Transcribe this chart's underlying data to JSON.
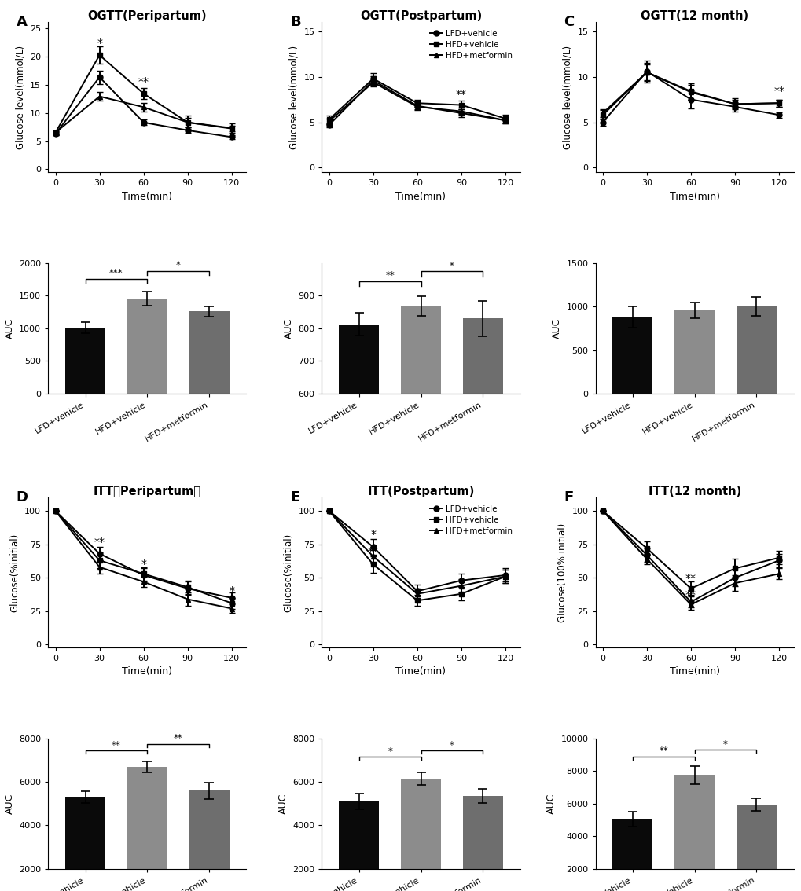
{
  "time_points": [
    0,
    30,
    60,
    90,
    120
  ],
  "ogtt_peri_lfd": [
    6.3,
    16.3,
    8.3,
    6.9,
    5.7
  ],
  "ogtt_peri_hfd": [
    6.5,
    20.2,
    13.4,
    8.3,
    7.3
  ],
  "ogtt_peri_met": [
    6.5,
    12.9,
    11.0,
    8.3,
    7.2
  ],
  "ogtt_peri_lfd_err": [
    0.3,
    1.2,
    0.5,
    0.5,
    0.4
  ],
  "ogtt_peri_hfd_err": [
    0.4,
    1.5,
    1.0,
    1.2,
    0.8
  ],
  "ogtt_peri_met_err": [
    0.3,
    0.8,
    0.8,
    0.8,
    0.5
  ],
  "ogtt_post_lfd": [
    4.7,
    9.6,
    6.8,
    6.0,
    5.2
  ],
  "ogtt_post_hfd": [
    5.3,
    9.8,
    7.1,
    6.9,
    5.4
  ],
  "ogtt_post_met": [
    5.1,
    9.4,
    6.7,
    6.2,
    5.2
  ],
  "ogtt_post_lfd_err": [
    0.3,
    0.5,
    0.4,
    0.4,
    0.3
  ],
  "ogtt_post_hfd_err": [
    0.4,
    0.6,
    0.4,
    0.5,
    0.4
  ],
  "ogtt_post_met_err": [
    0.3,
    0.5,
    0.4,
    0.4,
    0.3
  ],
  "ogtt_12m_lfd": [
    5.0,
    10.6,
    7.5,
    6.7,
    5.8
  ],
  "ogtt_12m_hfd": [
    5.8,
    10.5,
    8.4,
    7.0,
    7.1
  ],
  "ogtt_12m_met": [
    6.0,
    10.5,
    8.3,
    7.0,
    7.1
  ],
  "ogtt_12m_lfd_err": [
    0.4,
    1.2,
    1.0,
    0.5,
    0.3
  ],
  "ogtt_12m_hfd_err": [
    0.5,
    1.0,
    0.9,
    0.6,
    0.4
  ],
  "ogtt_12m_met_err": [
    0.4,
    0.9,
    0.8,
    0.5,
    0.4
  ],
  "auc_ogtt_peri": [
    1010,
    1460,
    1260
  ],
  "auc_ogtt_peri_err": [
    80,
    110,
    75
  ],
  "auc_ogtt_post": [
    812,
    868,
    830
  ],
  "auc_ogtt_post_err": [
    35,
    30,
    55
  ],
  "auc_ogtt_12m": [
    880,
    960,
    1000
  ],
  "auc_ogtt_12m_err": [
    120,
    90,
    110
  ],
  "itt_peri_lfd": [
    100,
    68,
    52,
    42,
    35
  ],
  "itt_peri_hfd": [
    100,
    63,
    53,
    43,
    31
  ],
  "itt_peri_met": [
    100,
    58,
    47,
    34,
    27
  ],
  "itt_peri_lfd_err": [
    0,
    5,
    5,
    5,
    4
  ],
  "itt_peri_hfd_err": [
    0,
    6,
    5,
    5,
    4
  ],
  "itt_peri_met_err": [
    0,
    5,
    4,
    5,
    3
  ],
  "itt_post_lfd": [
    100,
    73,
    40,
    48,
    52
  ],
  "itt_post_hfd": [
    100,
    60,
    33,
    38,
    51
  ],
  "itt_post_met": [
    100,
    66,
    38,
    44,
    51
  ],
  "itt_post_lfd_err": [
    0,
    6,
    5,
    5,
    5
  ],
  "itt_post_hfd_err": [
    0,
    6,
    4,
    5,
    5
  ],
  "itt_post_met_err": [
    0,
    5,
    4,
    5,
    5
  ],
  "itt_12m_lfd": [
    100,
    67,
    32,
    50,
    63
  ],
  "itt_12m_hfd": [
    100,
    72,
    42,
    57,
    65
  ],
  "itt_12m_met": [
    100,
    64,
    30,
    46,
    53
  ],
  "itt_12m_lfd_err": [
    0,
    5,
    4,
    6,
    5
  ],
  "itt_12m_hfd_err": [
    0,
    5,
    5,
    7,
    5
  ],
  "itt_12m_met_err": [
    0,
    4,
    4,
    6,
    4
  ],
  "auc_itt_peri": [
    5300,
    6700,
    5600
  ],
  "auc_itt_peri_err": [
    280,
    250,
    380
  ],
  "auc_itt_post": [
    5100,
    6150,
    5350
  ],
  "auc_itt_post_err": [
    350,
    300,
    330
  ],
  "auc_itt_12m": [
    5050,
    7750,
    5950
  ],
  "auc_itt_12m_err": [
    450,
    550,
    380
  ],
  "bar_colors": [
    "#0a0a0a",
    "#8c8c8c",
    "#6e6e6e"
  ],
  "groups": [
    "LFD+vehicle",
    "HFD+vehicle",
    "HFD+metformin"
  ],
  "groups_F": [
    "LFD+Vehicle",
    "HFD+Vehicle",
    "HFD+Metformin"
  ]
}
